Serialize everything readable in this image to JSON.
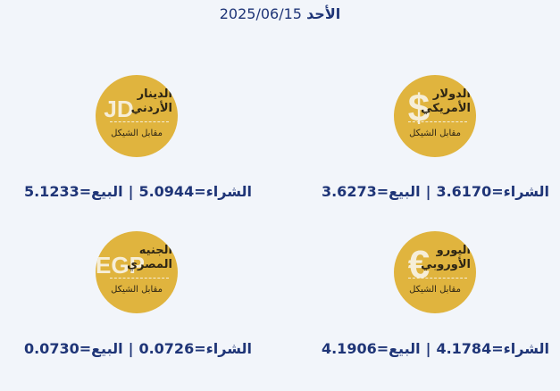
{
  "header": {
    "day": "الأحد",
    "date": "2025/06/15"
  },
  "labels": {
    "buy": "الشراء=",
    "sell": "البيع=",
    "separator": "|",
    "against": "مقابل الشيكل"
  },
  "cards": [
    {
      "symbol": "$",
      "name": [
        "الدولار",
        "الأمريكي"
      ],
      "buy": "3.6170",
      "sell": "3.6273"
    },
    {
      "symbol": "JD",
      "name": [
        "الدينار",
        "الأردني"
      ],
      "buy": "5.0944",
      "sell": "5.1233"
    },
    {
      "symbol": "€",
      "name": [
        "اليورو",
        "الأوروبي"
      ],
      "buy": "4.1784",
      "sell": "4.1906"
    },
    {
      "symbol": "EGP",
      "name": [
        "الجنيه",
        "المصري"
      ],
      "buy": "0.0726",
      "sell": "0.0730"
    }
  ]
}
